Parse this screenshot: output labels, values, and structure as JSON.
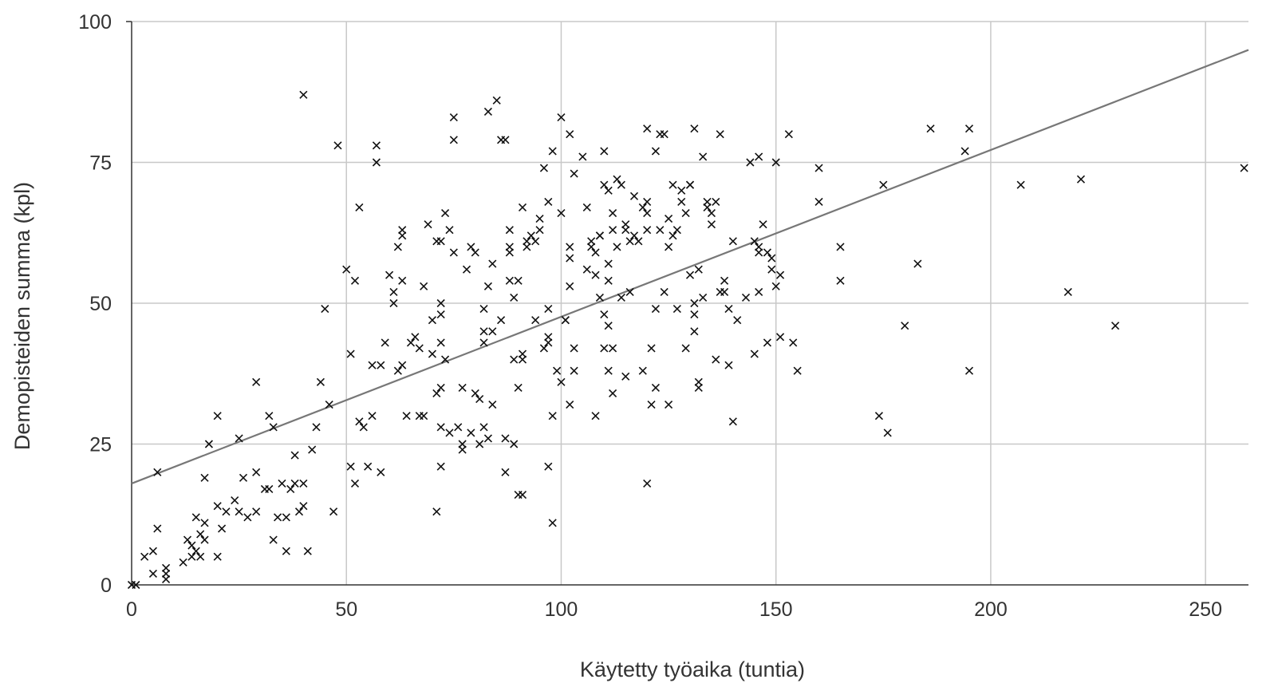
{
  "chart_data": {
    "type": "scatter",
    "xlabel": "Käytetty työaika (tuntia)",
    "ylabel": "Demopisteiden summa (kpl)",
    "xlim": [
      0,
      260
    ],
    "ylim": [
      0,
      100
    ],
    "xticks": [
      "0",
      "50",
      "100",
      "150",
      "200",
      "250"
    ],
    "yticks": [
      "0",
      "25",
      "50",
      "75",
      "100"
    ],
    "grid": true,
    "marker": "x",
    "colors": {
      "points": "#111111",
      "trendline": "#777777",
      "grid": "#c8c8c8",
      "axis": "#333333"
    },
    "trendline": {
      "type": "linear",
      "intercept": 18,
      "slope": 0.296
    },
    "points": [
      [
        0,
        0
      ],
      [
        1,
        0
      ],
      [
        3,
        5
      ],
      [
        5,
        2
      ],
      [
        5,
        6
      ],
      [
        6,
        10
      ],
      [
        6,
        20
      ],
      [
        8,
        1
      ],
      [
        8,
        3
      ],
      [
        8,
        2
      ],
      [
        12,
        4
      ],
      [
        13,
        8
      ],
      [
        14,
        5
      ],
      [
        14,
        7
      ],
      [
        15,
        6
      ],
      [
        15,
        12
      ],
      [
        16,
        9
      ],
      [
        16,
        5
      ],
      [
        17,
        11
      ],
      [
        17,
        8
      ],
      [
        17,
        19
      ],
      [
        18,
        25
      ],
      [
        20,
        14
      ],
      [
        20,
        30
      ],
      [
        20,
        5
      ],
      [
        21,
        10
      ],
      [
        22,
        13
      ],
      [
        24,
        15
      ],
      [
        25,
        13
      ],
      [
        25,
        26
      ],
      [
        26,
        19
      ],
      [
        27,
        12
      ],
      [
        29,
        36
      ],
      [
        29,
        13
      ],
      [
        29,
        20
      ],
      [
        31,
        17
      ],
      [
        32,
        17
      ],
      [
        32,
        30
      ],
      [
        33,
        8
      ],
      [
        33,
        28
      ],
      [
        34,
        12
      ],
      [
        35,
        18
      ],
      [
        36,
        12
      ],
      [
        36,
        6
      ],
      [
        37,
        17
      ],
      [
        38,
        23
      ],
      [
        38,
        18
      ],
      [
        39,
        13
      ],
      [
        40,
        14
      ],
      [
        40,
        18
      ],
      [
        40,
        87
      ],
      [
        41,
        6
      ],
      [
        42,
        24
      ],
      [
        43,
        28
      ],
      [
        44,
        36
      ],
      [
        45,
        49
      ],
      [
        46,
        32
      ],
      [
        47,
        13
      ],
      [
        48,
        78
      ],
      [
        50,
        56
      ],
      [
        51,
        41
      ],
      [
        51,
        21
      ],
      [
        52,
        54
      ],
      [
        52,
        18
      ],
      [
        53,
        67
      ],
      [
        53,
        29
      ],
      [
        54,
        28
      ],
      [
        55,
        21
      ],
      [
        56,
        30
      ],
      [
        56,
        39
      ],
      [
        57,
        78
      ],
      [
        57,
        75
      ],
      [
        58,
        39
      ],
      [
        58,
        20
      ],
      [
        59,
        43
      ],
      [
        60,
        55
      ],
      [
        61,
        52
      ],
      [
        61,
        50
      ],
      [
        62,
        38
      ],
      [
        62,
        60
      ],
      [
        63,
        62
      ],
      [
        63,
        63
      ],
      [
        63,
        39
      ],
      [
        63,
        54
      ],
      [
        64,
        30
      ],
      [
        65,
        43
      ],
      [
        66,
        44
      ],
      [
        67,
        42
      ],
      [
        67,
        30
      ],
      [
        68,
        30
      ],
      [
        68,
        53
      ],
      [
        69,
        64
      ],
      [
        70,
        41
      ],
      [
        70,
        47
      ],
      [
        71,
        61
      ],
      [
        71,
        34
      ],
      [
        71,
        13
      ],
      [
        72,
        61
      ],
      [
        72,
        48
      ],
      [
        72,
        50
      ],
      [
        72,
        35
      ],
      [
        72,
        21
      ],
      [
        72,
        43
      ],
      [
        72,
        28
      ],
      [
        73,
        66
      ],
      [
        73,
        40
      ],
      [
        74,
        63
      ],
      [
        74,
        27
      ],
      [
        75,
        59
      ],
      [
        75,
        79
      ],
      [
        75,
        83
      ],
      [
        76,
        28
      ],
      [
        77,
        35
      ],
      [
        77,
        24
      ],
      [
        77,
        25
      ],
      [
        78,
        56
      ],
      [
        79,
        60
      ],
      [
        79,
        27
      ],
      [
        80,
        59
      ],
      [
        80,
        34
      ],
      [
        81,
        25
      ],
      [
        81,
        33
      ],
      [
        82,
        43
      ],
      [
        82,
        49
      ],
      [
        82,
        28
      ],
      [
        82,
        45
      ],
      [
        83,
        84
      ],
      [
        83,
        26
      ],
      [
        83,
        53
      ],
      [
        84,
        57
      ],
      [
        84,
        32
      ],
      [
        84,
        45
      ],
      [
        85,
        86
      ],
      [
        86,
        47
      ],
      [
        86,
        79
      ],
      [
        87,
        79
      ],
      [
        87,
        26
      ],
      [
        87,
        20
      ],
      [
        88,
        63
      ],
      [
        88,
        60
      ],
      [
        88,
        54
      ],
      [
        88,
        59
      ],
      [
        89,
        40
      ],
      [
        89,
        51
      ],
      [
        89,
        25
      ],
      [
        90,
        54
      ],
      [
        90,
        35
      ],
      [
        90,
        16
      ],
      [
        91,
        40
      ],
      [
        91,
        41
      ],
      [
        91,
        16
      ],
      [
        91,
        67
      ],
      [
        92,
        61
      ],
      [
        92,
        60
      ],
      [
        93,
        62
      ],
      [
        94,
        61
      ],
      [
        94,
        47
      ],
      [
        95,
        63
      ],
      [
        95,
        65
      ],
      [
        96,
        42
      ],
      [
        96,
        74
      ],
      [
        97,
        68
      ],
      [
        97,
        49
      ],
      [
        97,
        43
      ],
      [
        97,
        44
      ],
      [
        97,
        21
      ],
      [
        98,
        77
      ],
      [
        98,
        30
      ],
      [
        98,
        11
      ],
      [
        99,
        38
      ],
      [
        100,
        83
      ],
      [
        100,
        66
      ],
      [
        100,
        36
      ],
      [
        101,
        47
      ],
      [
        101,
        47
      ],
      [
        102,
        53
      ],
      [
        102,
        60
      ],
      [
        102,
        58
      ],
      [
        102,
        80
      ],
      [
        102,
        32
      ],
      [
        103,
        73
      ],
      [
        103,
        42
      ],
      [
        103,
        38
      ],
      [
        105,
        76
      ],
      [
        106,
        56
      ],
      [
        106,
        67
      ],
      [
        107,
        60
      ],
      [
        107,
        61
      ],
      [
        108,
        59
      ],
      [
        108,
        55
      ],
      [
        108,
        30
      ],
      [
        109,
        62
      ],
      [
        109,
        51
      ],
      [
        109,
        62
      ],
      [
        110,
        77
      ],
      [
        110,
        48
      ],
      [
        110,
        42
      ],
      [
        110,
        71
      ],
      [
        111,
        70
      ],
      [
        111,
        38
      ],
      [
        111,
        57
      ],
      [
        111,
        54
      ],
      [
        111,
        46
      ],
      [
        112,
        66
      ],
      [
        112,
        63
      ],
      [
        112,
        42
      ],
      [
        112,
        34
      ],
      [
        113,
        72
      ],
      [
        113,
        60
      ],
      [
        114,
        51
      ],
      [
        114,
        71
      ],
      [
        115,
        63
      ],
      [
        115,
        64
      ],
      [
        115,
        37
      ],
      [
        116,
        61
      ],
      [
        116,
        52
      ],
      [
        117,
        62
      ],
      [
        117,
        69
      ],
      [
        118,
        61
      ],
      [
        119,
        38
      ],
      [
        119,
        67
      ],
      [
        120,
        68
      ],
      [
        120,
        63
      ],
      [
        120,
        66
      ],
      [
        120,
        81
      ],
      [
        120,
        18
      ],
      [
        121,
        42
      ],
      [
        121,
        32
      ],
      [
        122,
        77
      ],
      [
        122,
        49
      ],
      [
        122,
        35
      ],
      [
        123,
        63
      ],
      [
        123,
        80
      ],
      [
        124,
        80
      ],
      [
        124,
        52
      ],
      [
        125,
        32
      ],
      [
        125,
        65
      ],
      [
        125,
        60
      ],
      [
        126,
        71
      ],
      [
        126,
        62
      ],
      [
        127,
        49
      ],
      [
        127,
        63
      ],
      [
        128,
        70
      ],
      [
        128,
        68
      ],
      [
        129,
        42
      ],
      [
        129,
        66
      ],
      [
        130,
        55
      ],
      [
        130,
        71
      ],
      [
        130,
        71
      ],
      [
        131,
        81
      ],
      [
        131,
        48
      ],
      [
        131,
        50
      ],
      [
        131,
        45
      ],
      [
        132,
        56
      ],
      [
        132,
        35
      ],
      [
        132,
        36
      ],
      [
        133,
        76
      ],
      [
        133,
        51
      ],
      [
        134,
        67
      ],
      [
        134,
        68
      ],
      [
        135,
        66
      ],
      [
        135,
        64
      ],
      [
        136,
        40
      ],
      [
        136,
        68
      ],
      [
        137,
        52
      ],
      [
        137,
        80
      ],
      [
        138,
        54
      ],
      [
        138,
        52
      ],
      [
        139,
        49
      ],
      [
        139,
        39
      ],
      [
        140,
        61
      ],
      [
        140,
        29
      ],
      [
        141,
        47
      ],
      [
        143,
        51
      ],
      [
        144,
        75
      ],
      [
        145,
        61
      ],
      [
        145,
        41
      ],
      [
        146,
        76
      ],
      [
        146,
        59
      ],
      [
        146,
        60
      ],
      [
        146,
        52
      ],
      [
        147,
        64
      ],
      [
        148,
        43
      ],
      [
        148,
        59
      ],
      [
        149,
        56
      ],
      [
        149,
        58
      ],
      [
        150,
        75
      ],
      [
        150,
        53
      ],
      [
        151,
        55
      ],
      [
        151,
        44
      ],
      [
        153,
        80
      ],
      [
        154,
        43
      ],
      [
        155,
        38
      ],
      [
        160,
        68
      ],
      [
        160,
        74
      ],
      [
        165,
        60
      ],
      [
        165,
        54
      ],
      [
        174,
        30
      ],
      [
        175,
        71
      ],
      [
        176,
        27
      ],
      [
        180,
        46
      ],
      [
        183,
        57
      ],
      [
        186,
        81
      ],
      [
        194,
        77
      ],
      [
        195,
        81
      ],
      [
        195,
        38
      ],
      [
        207,
        71
      ],
      [
        218,
        52
      ],
      [
        221,
        72
      ],
      [
        229,
        46
      ],
      [
        259,
        74
      ]
    ]
  }
}
